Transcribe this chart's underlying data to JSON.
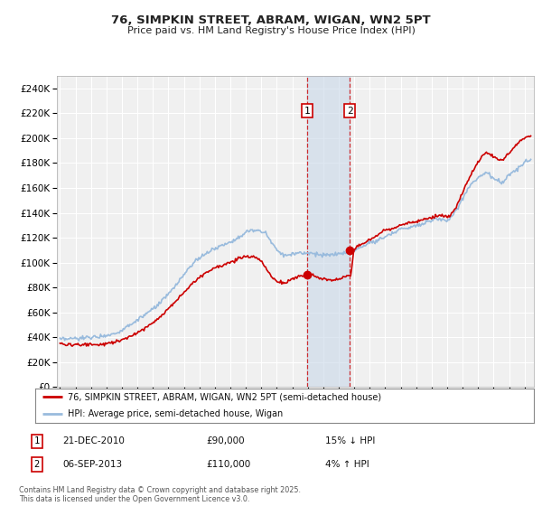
{
  "title": "76, SIMPKIN STREET, ABRAM, WIGAN, WN2 5PT",
  "subtitle": "Price paid vs. HM Land Registry's House Price Index (HPI)",
  "legend_line1": "76, SIMPKIN STREET, ABRAM, WIGAN, WN2 5PT (semi-detached house)",
  "legend_line2": "HPI: Average price, semi-detached house, Wigan",
  "red_line_color": "#cc0000",
  "blue_line_color": "#99bbdd",
  "sale1_date": "21-DEC-2010",
  "sale1_price": 90000,
  "sale1_hpi": "15% ↓ HPI",
  "sale2_date": "06-SEP-2013",
  "sale2_price": 110000,
  "sale2_hpi": "4% ↑ HPI",
  "footer": "Contains HM Land Registry data © Crown copyright and database right 2025.\nThis data is licensed under the Open Government Licence v3.0.",
  "ylim": [
    0,
    250000
  ],
  "ytick_step": 20000,
  "background_color": "#ffffff",
  "plot_bg_color": "#f0f0f0",
  "grid_color": "#ffffff"
}
